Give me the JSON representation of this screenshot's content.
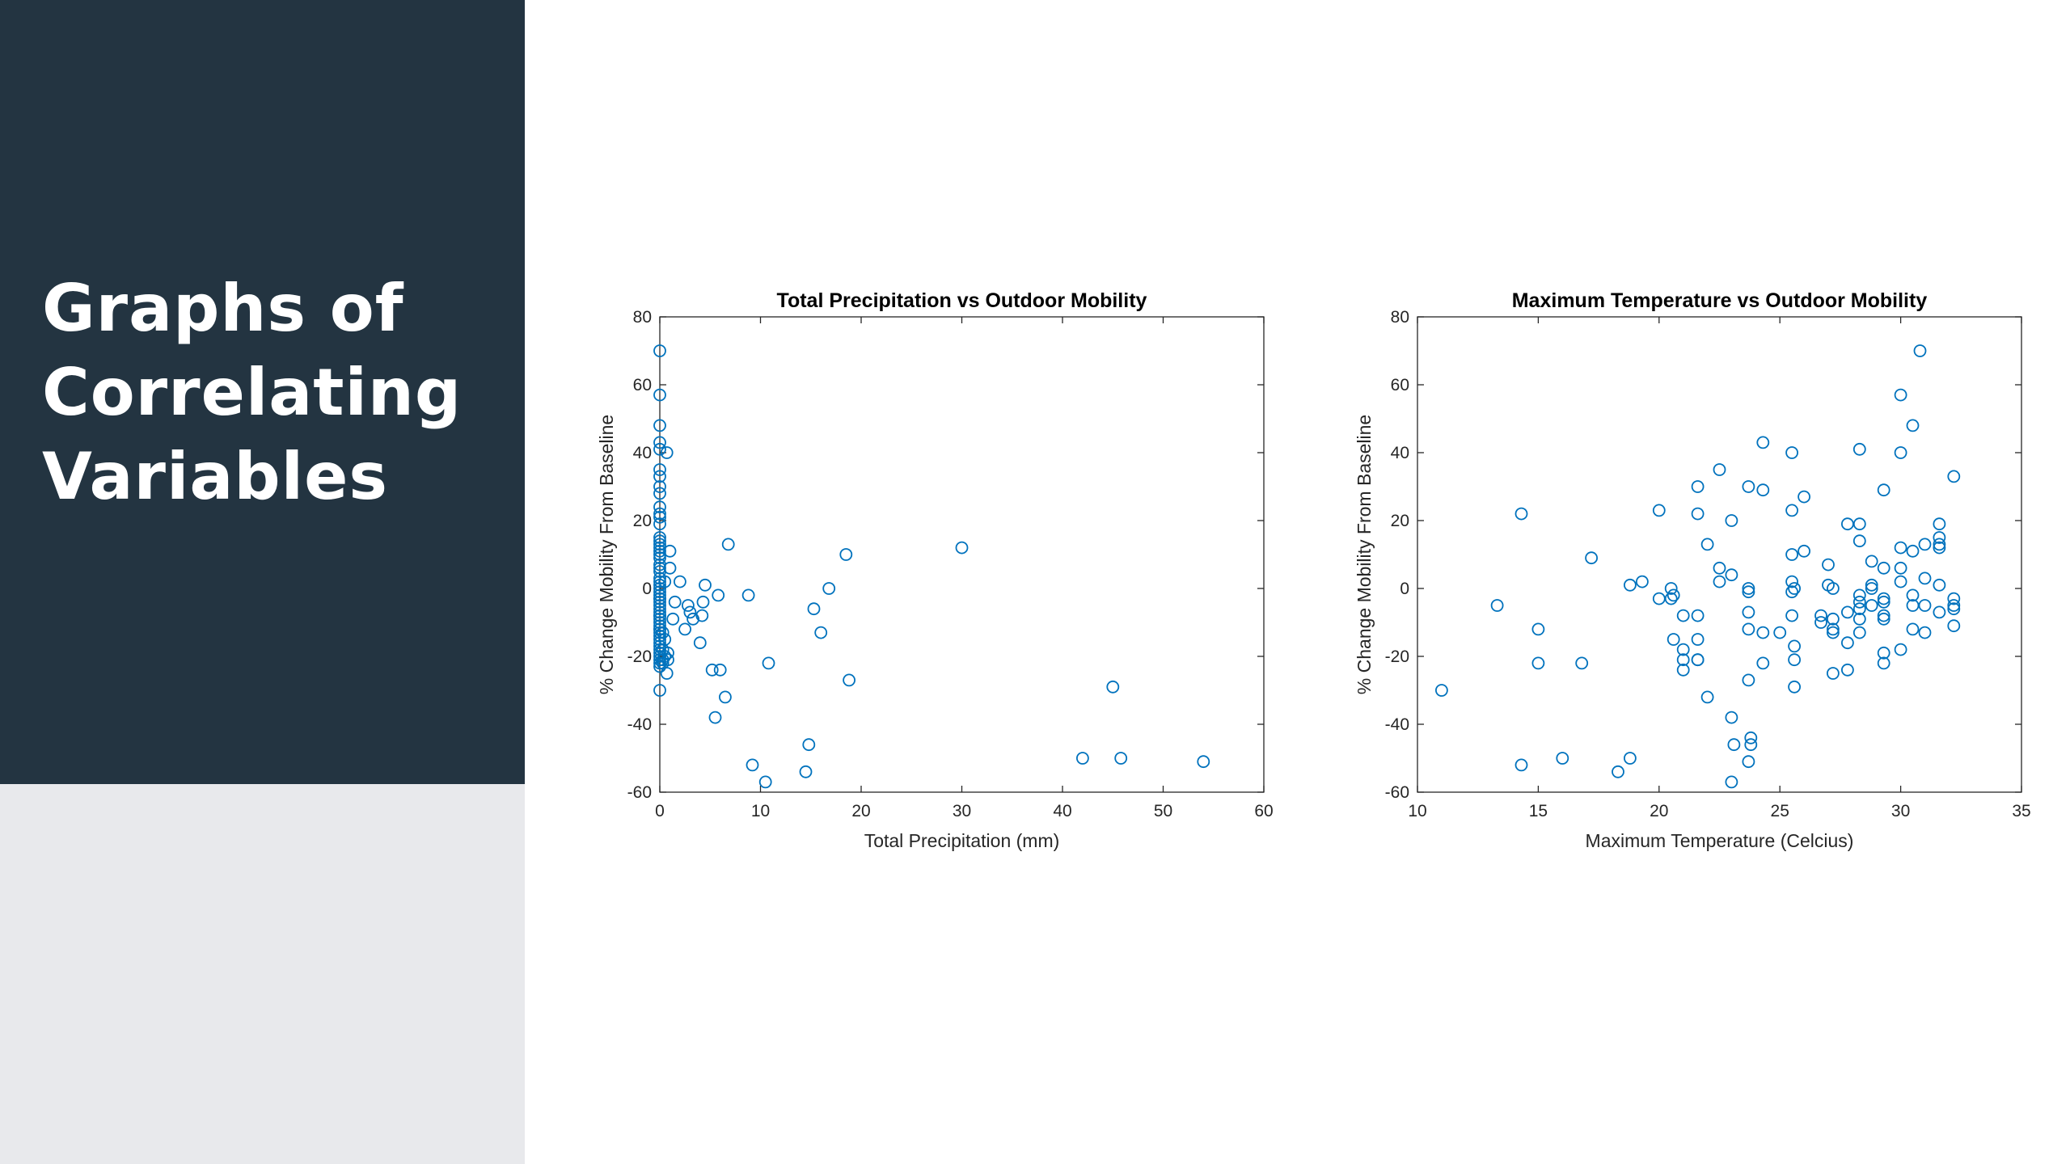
{
  "slide": {
    "title_lines": [
      "Graphs of",
      "Correlating",
      "Variables"
    ],
    "sidebar_color": "#233441"
  },
  "chart_data": [
    {
      "type": "scatter",
      "title": "Total Precipitation vs Outdoor Mobility",
      "xlabel": "Total Precipitation (mm)",
      "ylabel": "% Change Mobility From Baseline",
      "xlim": [
        0,
        60
      ],
      "ylim": [
        -60,
        80
      ],
      "xticks": [
        0,
        10,
        20,
        30,
        40,
        50,
        60
      ],
      "yticks": [
        -60,
        -40,
        -20,
        0,
        20,
        40,
        60,
        80
      ],
      "marker": "circle-open",
      "color": "#0072BD",
      "grid": false,
      "series": [
        {
          "x": [
            0,
            0,
            0,
            0,
            0,
            0,
            0,
            0,
            0,
            0,
            0,
            0,
            0,
            0,
            0,
            0,
            0,
            0,
            0,
            0,
            0,
            0,
            0,
            0,
            0,
            0,
            0,
            0,
            0,
            0,
            0,
            0,
            0,
            0,
            0,
            0,
            0,
            0,
            0,
            0,
            0,
            0,
            0,
            0,
            0,
            0,
            0,
            0,
            0,
            0,
            0,
            0,
            0,
            0,
            0.3,
            0.3,
            0.3,
            0.3,
            0.5,
            0.5,
            0.5,
            0.7,
            0.7,
            0.8,
            0.8,
            1.0,
            1.0,
            1.3,
            1.5,
            2.0,
            2.5,
            2.8,
            3.0,
            3.3,
            4.0,
            4.2,
            4.3,
            4.5,
            5.2,
            5.5,
            5.8,
            6.0,
            6.5,
            6.8,
            8.8,
            9.2,
            10.5,
            10.8,
            14.5,
            14.8,
            15.3,
            16.0,
            16.8,
            18.5,
            18.8,
            30.0,
            42.0,
            45.0,
            45.8,
            54.0
          ],
          "y": [
            70,
            57,
            48,
            43,
            41,
            35,
            33,
            30,
            28,
            24,
            21,
            19,
            15,
            13,
            11,
            9,
            7,
            5,
            3,
            1,
            0,
            -1,
            -2,
            -3,
            -4,
            -5,
            -6,
            -7,
            -8,
            -9,
            -10,
            -11,
            -12,
            -13,
            -14,
            -15,
            -16,
            -17,
            -18,
            -19,
            -20,
            -21,
            -22,
            -23,
            -30,
            -12,
            -8,
            -3,
            2,
            6,
            10,
            12,
            14,
            22,
            -13,
            -18,
            -21,
            -22,
            -15,
            -20,
            2,
            40,
            -25,
            -19,
            -21,
            6,
            11,
            -9,
            -4,
            2,
            -12,
            -5,
            -7,
            -9,
            -16,
            -8,
            -4,
            1,
            -24,
            -38,
            -2,
            -24,
            -32,
            13,
            -2,
            -52,
            -57,
            -22,
            -54,
            -46,
            -6,
            -13,
            0,
            10,
            -27,
            12,
            -50,
            -29,
            -50,
            -51
          ]
        }
      ]
    },
    {
      "type": "scatter",
      "title": "Maximum Temperature vs Outdoor Mobility",
      "xlabel": "Maximum Temperature (Celcius)",
      "ylabel": "% Change Mobility From Baseline",
      "xlim": [
        10,
        35
      ],
      "ylim": [
        -60,
        80
      ],
      "xticks": [
        10,
        15,
        20,
        25,
        30,
        35
      ],
      "yticks": [
        -60,
        -40,
        -20,
        0,
        20,
        40,
        60,
        80
      ],
      "marker": "circle-open",
      "color": "#0072BD",
      "grid": false,
      "series": [
        {
          "x": [
            11.0,
            13.3,
            14.3,
            14.3,
            15.0,
            15.0,
            16.0,
            16.8,
            17.2,
            18.3,
            18.8,
            18.8,
            19.3,
            20.0,
            20.0,
            20.5,
            20.5,
            20.6,
            20.6,
            21.0,
            21.0,
            21.0,
            21.0,
            21.6,
            21.6,
            21.6,
            21.6,
            21.6,
            21.6,
            22.0,
            22.0,
            22.5,
            22.5,
            22.5,
            23.0,
            23.0,
            23.0,
            23.0,
            23.1,
            23.7,
            23.7,
            23.7,
            23.7,
            23.7,
            23.7,
            23.7,
            23.8,
            23.8,
            24.3,
            24.3,
            24.3,
            24.3,
            25.0,
            25.5,
            25.5,
            25.5,
            25.5,
            25.5,
            25.5,
            25.6,
            25.6,
            25.6,
            25.6,
            26.0,
            26.0,
            26.7,
            26.7,
            27.0,
            27.0,
            27.2,
            27.2,
            27.2,
            27.2,
            27.2,
            27.8,
            27.8,
            27.8,
            27.8,
            28.3,
            28.3,
            28.3,
            28.3,
            28.3,
            28.3,
            28.3,
            28.3,
            28.8,
            28.8,
            28.8,
            28.8,
            29.3,
            29.3,
            29.3,
            29.3,
            29.3,
            29.3,
            29.3,
            29.3,
            30.0,
            30.0,
            30.0,
            30.0,
            30.0,
            30.0,
            30.5,
            30.5,
            30.5,
            30.5,
            30.5,
            30.8,
            31.0,
            31.0,
            31.0,
            31.0,
            31.6,
            31.6,
            31.6,
            31.6,
            31.6,
            31.6,
            32.2,
            32.2,
            32.2,
            32.2,
            32.2
          ],
          "y": [
            -30,
            -5,
            22,
            -52,
            -12,
            -22,
            -50,
            -22,
            9,
            -54,
            1,
            -50,
            2,
            23,
            -3,
            0,
            -3,
            -15,
            -2,
            -8,
            -18,
            -21,
            -24,
            30,
            22,
            -8,
            -15,
            -21,
            -21,
            13,
            -32,
            35,
            6,
            2,
            20,
            4,
            -38,
            -57,
            -46,
            30,
            0,
            -1,
            -7,
            -12,
            -27,
            -51,
            -44,
            -46,
            43,
            29,
            -22,
            -13,
            -13,
            40,
            23,
            10,
            2,
            -1,
            -8,
            -17,
            -21,
            -29,
            0,
            27,
            11,
            -10,
            -8,
            7,
            1,
            0,
            -9,
            -12,
            -13,
            -25,
            19,
            -7,
            -16,
            -24,
            41,
            19,
            14,
            -2,
            -4,
            -6,
            -9,
            -13,
            8,
            1,
            0,
            -5,
            29,
            6,
            -3,
            -4,
            -8,
            -9,
            -19,
            -22,
            57,
            40,
            12,
            6,
            2,
            -18,
            48,
            11,
            -2,
            -5,
            -12,
            70,
            13,
            3,
            -5,
            -13,
            19,
            15,
            13,
            12,
            1,
            -7,
            33,
            -3,
            -5,
            -6,
            -11
          ]
        }
      ]
    }
  ]
}
